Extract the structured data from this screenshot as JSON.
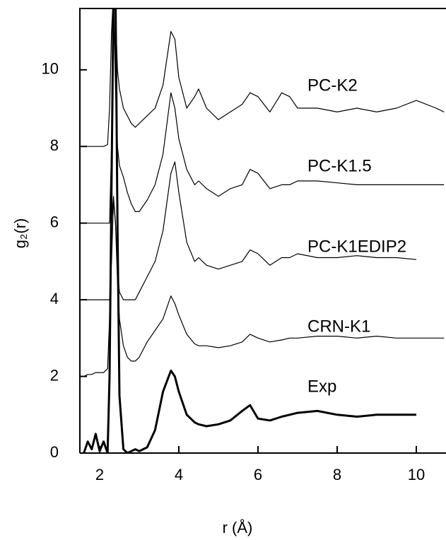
{
  "chart_data": {
    "type": "line",
    "x_label": "r (Å)",
    "y_label": "g₂(r)",
    "x": [
      1.5,
      1.6,
      1.7,
      1.8,
      1.9,
      2.0,
      2.1,
      2.2,
      2.25,
      2.3,
      2.35,
      2.4,
      2.45,
      2.5,
      2.6,
      2.7,
      2.8,
      2.9,
      3.0,
      3.2,
      3.4,
      3.6,
      3.8,
      3.9,
      4.0,
      4.2,
      4.4,
      4.5,
      4.7,
      5.0,
      5.3,
      5.6,
      5.8,
      6.0,
      6.3,
      6.6,
      6.8,
      7.0,
      7.5,
      8.0,
      8.5,
      9.0,
      9.5,
      10.0,
      10.5,
      10.7
    ],
    "series": [
      {
        "name": "PC-K2",
        "color": "#000000",
        "values": [
          8,
          8,
          8,
          8,
          8,
          8,
          8,
          8.05,
          9,
          11,
          12,
          11.5,
          10,
          9.5,
          9.0,
          8.8,
          8.6,
          8.5,
          8.6,
          8.8,
          9.0,
          9.6,
          11.0,
          10.8,
          9.8,
          9.0,
          9.3,
          9.5,
          9.0,
          8.7,
          8.9,
          9.1,
          9.4,
          9.3,
          8.9,
          9.4,
          9.3,
          9.0,
          9.0,
          8.9,
          9.0,
          8.9,
          9.0,
          9.2,
          9.0,
          8.9
        ]
      },
      {
        "name": "PC-K1.5",
        "color": "#000000",
        "values": [
          6,
          6,
          6,
          6,
          6,
          6,
          6,
          6,
          6,
          8,
          12,
          9.5,
          8,
          7.5,
          7.2,
          6.8,
          6.5,
          6.3,
          6.3,
          6.6,
          7.0,
          7.8,
          9.4,
          9.0,
          8.2,
          7.4,
          7.0,
          7.1,
          6.9,
          6.7,
          6.9,
          7.0,
          7.4,
          7.3,
          6.9,
          7.0,
          7.0,
          7.1,
          7.1,
          7.05,
          7.0,
          7.0,
          7.0,
          7.0,
          7.0,
          7.0
        ]
      },
      {
        "name": "PC-K1EDIP2",
        "color": "#000000",
        "values": [
          4,
          4,
          4,
          4,
          4,
          4,
          4,
          4,
          4,
          5,
          6.6,
          6.0,
          4.8,
          4.2,
          4.0,
          4.0,
          4.0,
          4.0,
          4.2,
          4.6,
          5.0,
          5.8,
          7.3,
          7.6,
          6.8,
          5.5,
          5.0,
          5.1,
          4.9,
          4.8,
          4.9,
          5.0,
          5.3,
          5.2,
          4.9,
          5.1,
          5.1,
          5.2,
          5.1,
          5.1,
          5.15,
          5.1,
          5.1,
          5.05,
          null,
          null
        ]
      },
      {
        "name": "CRN-K1",
        "color": "#000000",
        "values": [
          2.0,
          2.0,
          2.05,
          2.05,
          2.1,
          2.1,
          2.1,
          2.2,
          3.5,
          6.0,
          6.7,
          6.0,
          4.5,
          3.5,
          2.8,
          2.5,
          2.4,
          2.4,
          2.5,
          2.9,
          3.2,
          3.5,
          4.1,
          3.9,
          3.6,
          3.1,
          2.85,
          2.8,
          2.8,
          2.75,
          2.8,
          2.9,
          3.1,
          3.0,
          2.9,
          2.95,
          3.0,
          3.0,
          3.05,
          3.05,
          3.0,
          3.05,
          3.0,
          3.0,
          3.0,
          3.0
        ]
      },
      {
        "name": "Exp",
        "color": "#000000",
        "values": [
          null,
          0,
          0.3,
          0.1,
          0.5,
          0.05,
          0.3,
          0,
          2,
          7,
          12,
          12,
          6,
          1.5,
          0.1,
          0,
          0.05,
          0.1,
          0.05,
          0.15,
          0.6,
          1.6,
          2.15,
          2.0,
          1.6,
          1.0,
          0.8,
          0.75,
          0.7,
          0.75,
          0.85,
          1.1,
          1.25,
          0.9,
          0.85,
          0.95,
          1.0,
          1.05,
          1.1,
          1.0,
          0.95,
          1.0,
          1.0,
          1.0,
          null,
          null
        ]
      }
    ],
    "xlim": [
      1.5,
      10.75
    ],
    "ylim": [
      0,
      11.6
    ],
    "xticks": [
      2,
      4,
      6,
      8,
      10
    ],
    "yticks": [
      0,
      2,
      4,
      6,
      8,
      10
    ]
  }
}
